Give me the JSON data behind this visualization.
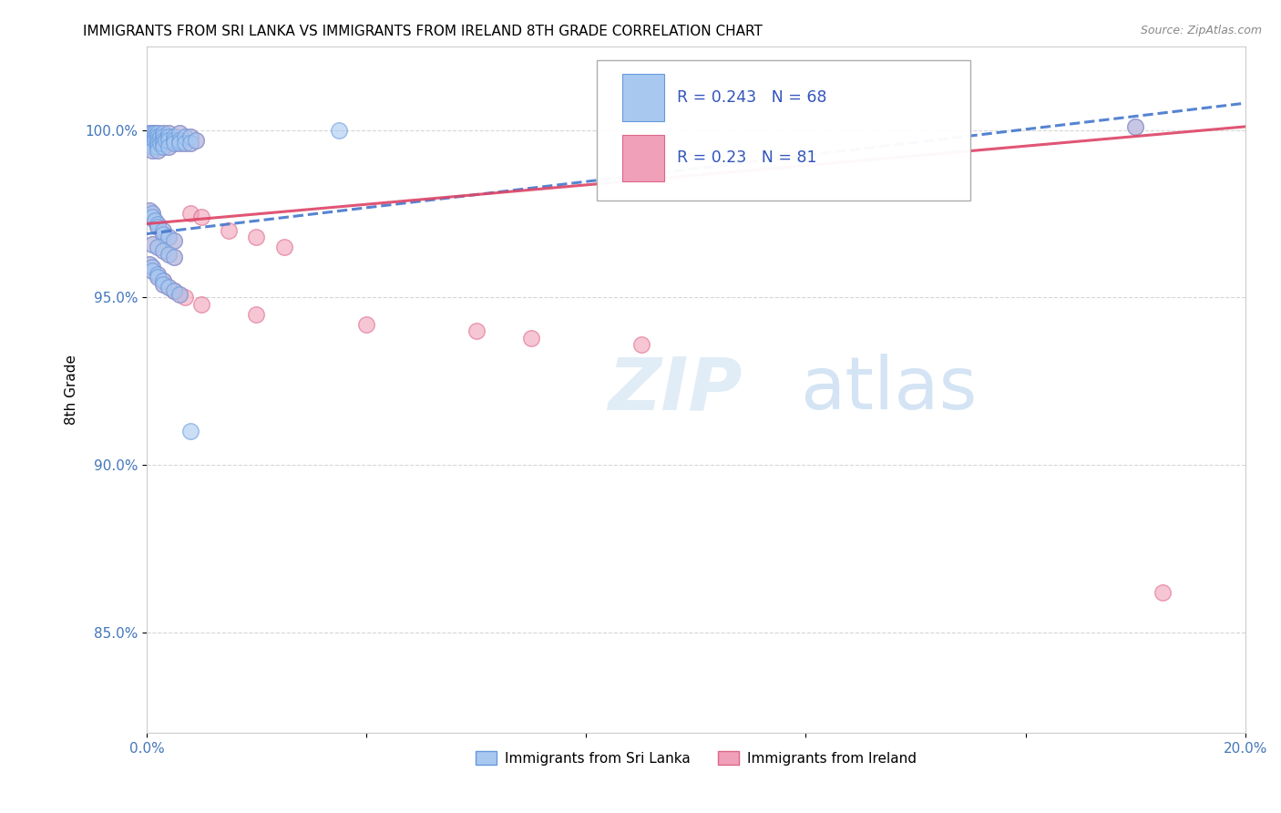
{
  "title": "IMMIGRANTS FROM SRI LANKA VS IMMIGRANTS FROM IRELAND 8TH GRADE CORRELATION CHART",
  "source": "Source: ZipAtlas.com",
  "ylabel": "8th Grade",
  "xlim": [
    0.0,
    0.2
  ],
  "ylim": [
    0.82,
    1.025
  ],
  "yticks": [
    0.85,
    0.9,
    0.95,
    1.0
  ],
  "ytick_labels": [
    "85.0%",
    "90.0%",
    "95.0%",
    "100.0%"
  ],
  "xtick_labels_show": [
    "0.0%",
    "20.0%"
  ],
  "sl_color_fill": "#a8c8f0",
  "sl_color_edge": "#6699dd",
  "ir_color_fill": "#f0a0b8",
  "ir_color_edge": "#dd6688",
  "sl_line_color": "#4477cc",
  "ir_line_color": "#dd4466",
  "grid_color": "#cccccc",
  "background_color": "#ffffff",
  "title_fontsize": 11,
  "tick_color": "#4477bb",
  "watermark_zip": "ZIP",
  "watermark_atlas": "atlas",
  "sl_R": 0.243,
  "sl_N": 68,
  "ir_R": 0.23,
  "ir_N": 81,
  "legend_label_sl": "Immigrants from Sri Lanka",
  "legend_label_ir": "Immigrants from Ireland",
  "sl_x": [
    0.0005,
    0.001,
    0.001,
    0.001,
    0.001,
    0.001,
    0.001,
    0.001,
    0.0015,
    0.0015,
    0.0015,
    0.002,
    0.002,
    0.002,
    0.002,
    0.002,
    0.002,
    0.0025,
    0.0025,
    0.003,
    0.003,
    0.003,
    0.003,
    0.003,
    0.0035,
    0.004,
    0.004,
    0.004,
    0.004,
    0.005,
    0.005,
    0.005,
    0.006,
    0.006,
    0.006,
    0.007,
    0.007,
    0.008,
    0.008,
    0.009,
    0.0005,
    0.001,
    0.001,
    0.0015,
    0.002,
    0.002,
    0.003,
    0.003,
    0.004,
    0.005,
    0.0005,
    0.001,
    0.001,
    0.002,
    0.002,
    0.003,
    0.003,
    0.004,
    0.005,
    0.006,
    0.001,
    0.002,
    0.003,
    0.004,
    0.005,
    0.008,
    0.035,
    0.18
  ],
  "sl_y": [
    0.999,
    0.999,
    0.998,
    0.997,
    0.996,
    0.996,
    0.995,
    0.994,
    0.999,
    0.998,
    0.997,
    0.999,
    0.998,
    0.997,
    0.996,
    0.995,
    0.994,
    0.998,
    0.996,
    0.999,
    0.998,
    0.997,
    0.996,
    0.995,
    0.997,
    0.999,
    0.998,
    0.997,
    0.995,
    0.998,
    0.997,
    0.996,
    0.999,
    0.997,
    0.996,
    0.998,
    0.996,
    0.998,
    0.996,
    0.997,
    0.976,
    0.975,
    0.974,
    0.973,
    0.972,
    0.971,
    0.97,
    0.969,
    0.968,
    0.967,
    0.96,
    0.959,
    0.958,
    0.957,
    0.956,
    0.955,
    0.954,
    0.953,
    0.952,
    0.951,
    0.966,
    0.965,
    0.964,
    0.963,
    0.962,
    0.91,
    1.0,
    1.001
  ],
  "ir_x": [
    0.0005,
    0.001,
    0.001,
    0.001,
    0.001,
    0.001,
    0.001,
    0.001,
    0.0015,
    0.0015,
    0.0015,
    0.002,
    0.002,
    0.002,
    0.002,
    0.002,
    0.002,
    0.0025,
    0.0025,
    0.003,
    0.003,
    0.003,
    0.003,
    0.003,
    0.0035,
    0.004,
    0.004,
    0.004,
    0.004,
    0.005,
    0.005,
    0.005,
    0.006,
    0.006,
    0.006,
    0.007,
    0.007,
    0.008,
    0.008,
    0.009,
    0.0005,
    0.001,
    0.001,
    0.0015,
    0.002,
    0.002,
    0.003,
    0.003,
    0.004,
    0.005,
    0.0005,
    0.001,
    0.001,
    0.002,
    0.002,
    0.003,
    0.003,
    0.004,
    0.005,
    0.006,
    0.001,
    0.002,
    0.003,
    0.004,
    0.005,
    0.008,
    0.01,
    0.015,
    0.02,
    0.025,
    0.003,
    0.005,
    0.007,
    0.01,
    0.02,
    0.04,
    0.06,
    0.07,
    0.09,
    0.18,
    0.185
  ],
  "ir_y": [
    0.999,
    0.999,
    0.998,
    0.997,
    0.996,
    0.996,
    0.995,
    0.994,
    0.999,
    0.998,
    0.997,
    0.999,
    0.998,
    0.997,
    0.996,
    0.995,
    0.994,
    0.998,
    0.996,
    0.999,
    0.998,
    0.997,
    0.996,
    0.995,
    0.997,
    0.999,
    0.998,
    0.997,
    0.995,
    0.998,
    0.997,
    0.996,
    0.999,
    0.997,
    0.996,
    0.998,
    0.996,
    0.998,
    0.996,
    0.997,
    0.976,
    0.975,
    0.974,
    0.973,
    0.972,
    0.971,
    0.97,
    0.969,
    0.968,
    0.967,
    0.96,
    0.959,
    0.958,
    0.957,
    0.956,
    0.955,
    0.954,
    0.953,
    0.952,
    0.951,
    0.966,
    0.965,
    0.964,
    0.963,
    0.962,
    0.975,
    0.974,
    0.97,
    0.968,
    0.965,
    0.955,
    0.952,
    0.95,
    0.948,
    0.945,
    0.942,
    0.94,
    0.938,
    0.936,
    1.001,
    0.862
  ]
}
